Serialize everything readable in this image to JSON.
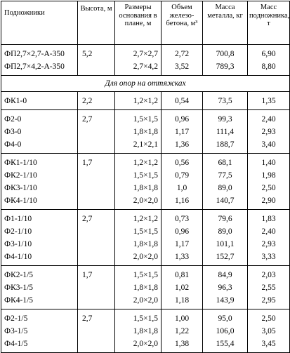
{
  "headers": {
    "name": "Подножники",
    "height": "Высота, м",
    "size": "Размеры основания в плане, м",
    "volume": "Объем железо-бетона, м³",
    "metal": "Масса металла, кг",
    "mass": "Масс подножника, т"
  },
  "section_label": "Для опор на оттяжках",
  "group0": [
    {
      "name": "ФП2,7×2,7-А-350",
      "h": "5,2",
      "size": "2,7×2,7",
      "vol": "2,72",
      "metal": "700,8",
      "mass": "6,90"
    },
    {
      "name": "ФП2,7×4,2-А-350",
      "h": "",
      "size": "2,7×4,2",
      "vol": "3,52",
      "metal": "789,3",
      "mass": "8,80"
    }
  ],
  "group1": [
    {
      "name": "ФК1-0",
      "h": "2,2",
      "size": "1,2×1,2",
      "vol": "0,54",
      "metal": "73,5",
      "mass": "1,35"
    }
  ],
  "group2": [
    {
      "name": "Ф2-0",
      "h": "2,7",
      "size": "1,5×1,5",
      "vol": "0,96",
      "metal": "99,3",
      "mass": "2,40"
    },
    {
      "name": "Ф3-0",
      "h": "",
      "size": "1,8×1,8",
      "vol": "1,17",
      "metal": "111,4",
      "mass": "2,93"
    },
    {
      "name": "Ф4-0",
      "h": "",
      "size": "2,1×2,1",
      "vol": "1,36",
      "metal": "188,7",
      "mass": "3,40"
    }
  ],
  "group3": [
    {
      "name": "ФК1-1/10",
      "h": "1,7",
      "size": "1,2×1,2",
      "vol": "0,56",
      "metal": "68,1",
      "mass": "1,40"
    },
    {
      "name": "ФК2-1/10",
      "h": "",
      "size": "1,5×1,5",
      "vol": "0,79",
      "metal": "77,5",
      "mass": "1,98"
    },
    {
      "name": "ФК3-1/10",
      "h": "",
      "size": "1,8×1,8",
      "vol": "1,0",
      "metal": "89,0",
      "mass": "2,50"
    },
    {
      "name": "ФК4-1/10",
      "h": "",
      "size": "2,0×2,0",
      "vol": "1,16",
      "metal": "140,7",
      "mass": "2,90"
    }
  ],
  "group4": [
    {
      "name": "Ф1-1/10",
      "h": "2,7",
      "size": "1,2×1,2",
      "vol": "0,73",
      "metal": "79,6",
      "mass": "1,83"
    },
    {
      "name": "Ф2-1/10",
      "h": "",
      "size": "1,5×1,5",
      "vol": "0,96",
      "metal": "89,0",
      "mass": "2,40"
    },
    {
      "name": "Ф3-1/10",
      "h": "",
      "size": "1,8×1,8",
      "vol": "1,17",
      "metal": "101,1",
      "mass": "2,93"
    },
    {
      "name": "Ф4-1/10",
      "h": "",
      "size": "2,0×2,0",
      "vol": "1,33",
      "metal": "152,7",
      "mass": "3,33"
    }
  ],
  "group5": [
    {
      "name": "ФК2-1/5",
      "h": "1,7",
      "size": "1,5×1,5",
      "vol": "0,81",
      "metal": "84,9",
      "mass": "2,03"
    },
    {
      "name": "ФК3-1/5",
      "h": "",
      "size": "1,8×1,8",
      "vol": "1,02",
      "metal": "96,3",
      "mass": "2,55"
    },
    {
      "name": "ФК4-1/5",
      "h": "",
      "size": "2,0×2,0",
      "vol": "1,18",
      "metal": "143,9",
      "mass": "2,95"
    }
  ],
  "group6": [
    {
      "name": "Ф2-1/5",
      "h": "2,7",
      "size": "1,5×1,5",
      "vol": "1,00",
      "metal": "95,0",
      "mass": "2,50"
    },
    {
      "name": "Ф3-1/5",
      "h": "",
      "size": "1,8×1,8",
      "vol": "1,22",
      "metal": "106,0",
      "mass": "3,05"
    },
    {
      "name": "Ф4-1/5",
      "h": "",
      "size": "2,0×2,0",
      "vol": "1,38",
      "metal": "155,4",
      "mass": "3,45"
    }
  ]
}
